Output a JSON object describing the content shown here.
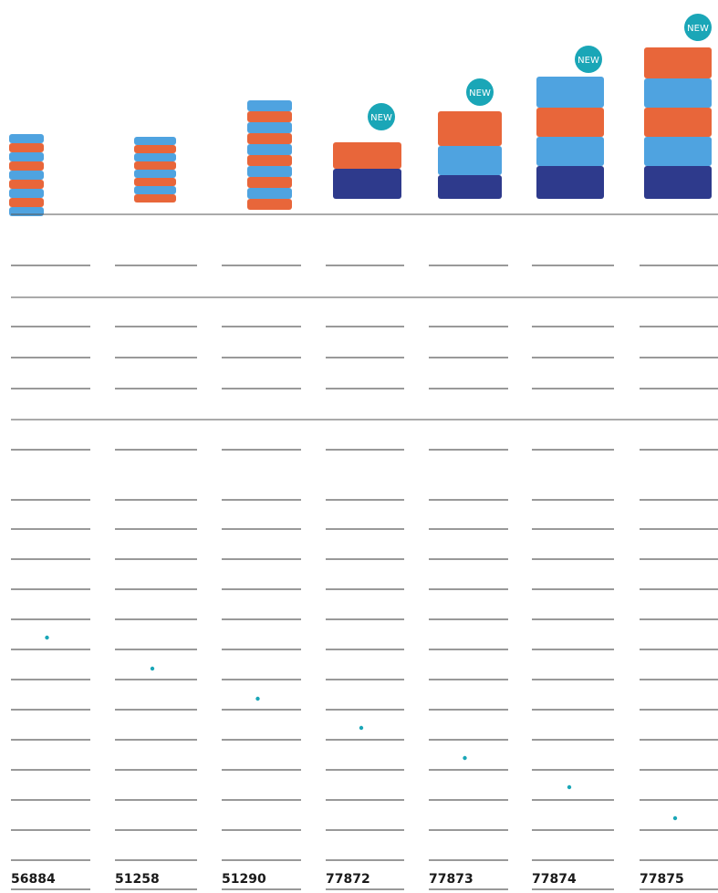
{
  "products": [
    {
      "number": "56884"
    },
    {
      "number": "51258"
    },
    {
      "number": "51290"
    },
    {
      "number": "77872",
      "badge": "NEW"
    },
    {
      "number": "77873",
      "badge": "NEW"
    },
    {
      "number": "77874",
      "badge": "NEW"
    },
    {
      "number": "77875",
      "badge": "NEW"
    }
  ]
}
